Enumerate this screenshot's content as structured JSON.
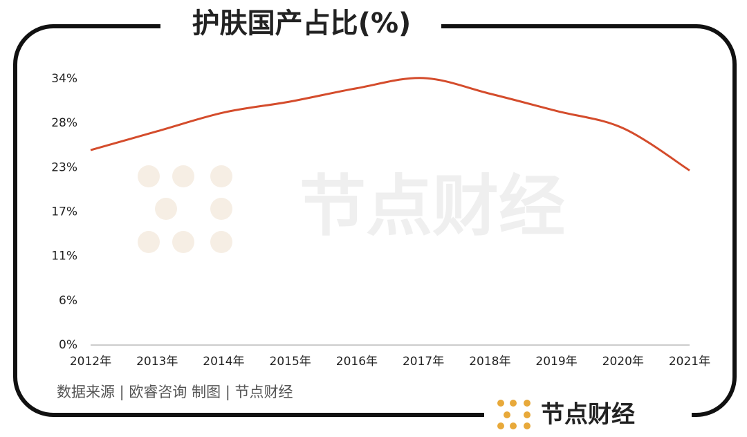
{
  "chart_data": {
    "type": "line",
    "title": "护肤国产占比(%)",
    "categories": [
      "2012年",
      "2013年",
      "2014年",
      "2015年",
      "2016年",
      "2017年",
      "2018年",
      "2019年",
      "2020年",
      "2021年"
    ],
    "series": [
      {
        "name": "护肤国产占比",
        "color": "#d44c2c",
        "values": [
          24.9,
          27.3,
          29.7,
          31.1,
          32.8,
          34.1,
          32.1,
          29.9,
          27.7,
          22.3
        ]
      }
    ],
    "ylim": [
      0,
      34
    ],
    "yticks": [
      {
        "value": 0,
        "label": "0%"
      },
      {
        "value": 5.67,
        "label": "6%"
      },
      {
        "value": 11.33,
        "label": "11%"
      },
      {
        "value": 17,
        "label": "17%"
      },
      {
        "value": 22.67,
        "label": "23%"
      },
      {
        "value": 28.33,
        "label": "28%"
      },
      {
        "value": 34,
        "label": "34%"
      }
    ],
    "source": "数据来源 | 欧睿咨询  制图 | 节点财经",
    "watermark": "节点财经",
    "logo": "节点财经"
  }
}
